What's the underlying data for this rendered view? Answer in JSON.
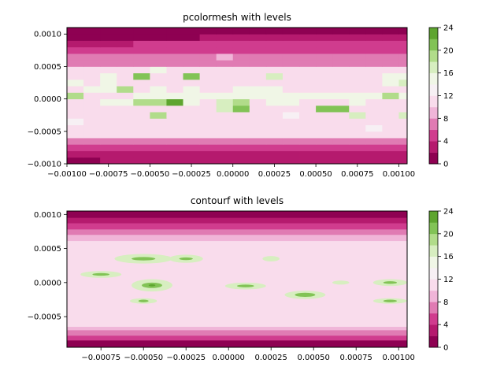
{
  "chart_data": [
    {
      "type": "heatmap",
      "title": "pcolormesh with levels",
      "xlabel": "",
      "ylabel": "",
      "xlim": [
        -0.001,
        0.00105
      ],
      "ylim": [
        -0.001,
        0.0011
      ],
      "xticks": [
        -0.001,
        -0.00075,
        -0.0005,
        -0.00025,
        0.0,
        0.00025,
        0.0005,
        0.00075,
        0.001
      ],
      "xtick_labels": [
        "−0.00100",
        "−0.00075",
        "−0.00050",
        "−0.00025",
        "0.00000",
        "0.00025",
        "0.00050",
        "0.00075",
        "0.00100"
      ],
      "yticks": [
        -0.001,
        -0.0005,
        0.0,
        0.0005,
        0.001
      ],
      "ytick_labels": [
        "−0.0010",
        "−0.0005",
        "0.0000",
        "0.0005",
        "0.0010"
      ],
      "x_edges": [
        -0.001,
        -0.0009,
        -0.0008,
        -0.0007,
        -0.0006,
        -0.0005,
        -0.0004,
        -0.0003,
        -0.0002,
        -0.0001,
        0.0,
        0.0001,
        0.0002,
        0.0003,
        0.0004,
        0.0005,
        0.0006,
        0.0007,
        0.0008,
        0.0009,
        0.001,
        0.00105
      ],
      "y_edges": [
        -0.001,
        -0.0009,
        -0.0008,
        -0.0007,
        -0.0006,
        -0.0005,
        -0.0004,
        -0.0003,
        -0.0002,
        -0.0001,
        0.0,
        0.0001,
        0.0002,
        0.0003,
        0.0004,
        0.0005,
        0.0006,
        0.0007,
        0.0008,
        0.0009,
        0.001,
        0.0011
      ],
      "levels_hint": "cell values bin into colorbar levels",
      "z": [
        [
          1,
          1,
          2,
          2,
          2,
          2,
          2,
          2,
          2,
          2,
          2,
          2,
          2,
          2,
          2,
          2,
          2,
          2,
          2,
          2,
          2
        ],
        [
          2,
          2,
          2,
          2,
          3,
          3,
          3,
          3,
          3,
          3,
          3,
          3,
          3,
          3,
          3,
          3,
          3,
          3,
          3,
          3,
          3
        ],
        [
          4,
          4,
          5,
          5,
          5,
          5,
          5,
          5,
          5,
          5,
          5,
          5,
          5,
          5,
          5,
          5,
          5,
          5,
          5,
          5,
          5
        ],
        [
          7,
          7,
          7,
          7,
          7,
          7,
          7,
          7,
          7,
          7,
          7,
          7,
          7,
          7,
          7,
          7,
          7,
          7,
          7,
          7,
          7
        ],
        [
          10,
          10,
          10,
          10,
          10,
          10,
          10,
          10,
          10,
          10,
          10,
          10,
          10,
          10,
          10,
          10,
          10,
          10,
          10,
          10,
          10
        ],
        [
          10,
          10,
          10,
          10,
          10,
          10,
          10,
          10,
          10,
          10,
          10,
          10,
          10,
          10,
          10,
          10,
          10,
          10,
          13,
          10,
          10
        ],
        [
          13,
          10,
          10,
          10,
          10,
          10,
          10,
          10,
          10,
          10,
          10,
          10,
          10,
          10,
          10,
          10,
          10,
          10,
          10,
          10,
          10
        ],
        [
          10,
          10,
          10,
          10,
          10,
          19,
          10,
          10,
          10,
          10,
          10,
          10,
          10,
          13,
          10,
          10,
          10,
          17,
          10,
          10,
          17
        ],
        [
          10,
          10,
          10,
          10,
          10,
          10,
          10,
          10,
          10,
          17,
          21,
          10,
          10,
          10,
          10,
          21,
          21,
          10,
          10,
          10,
          10
        ],
        [
          10,
          10,
          14,
          14,
          18,
          18,
          23,
          14,
          10,
          17,
          19,
          10,
          14,
          14,
          10,
          10,
          10,
          14,
          10,
          10,
          10
        ],
        [
          18,
          10,
          10,
          10,
          14,
          14,
          14,
          14,
          14,
          14,
          14,
          14,
          14,
          14,
          14,
          14,
          14,
          14,
          14,
          18,
          14
        ],
        [
          10,
          14,
          14,
          19,
          10,
          14,
          10,
          14,
          10,
          10,
          14,
          14,
          14,
          10,
          10,
          10,
          10,
          10,
          10,
          10,
          10
        ],
        [
          14,
          10,
          14,
          10,
          10,
          10,
          10,
          10,
          10,
          10,
          10,
          10,
          10,
          10,
          10,
          10,
          10,
          10,
          10,
          14,
          17
        ],
        [
          10,
          10,
          14,
          10,
          21,
          10,
          10,
          21,
          10,
          10,
          10,
          10,
          17,
          10,
          10,
          10,
          10,
          10,
          10,
          14,
          14
        ],
        [
          10,
          10,
          10,
          10,
          10,
          14,
          10,
          10,
          10,
          10,
          10,
          10,
          10,
          10,
          10,
          10,
          10,
          10,
          10,
          10,
          10
        ],
        [
          7,
          7,
          7,
          7,
          7,
          7,
          7,
          7,
          7,
          7,
          7,
          7,
          7,
          7,
          7,
          7,
          7,
          7,
          7,
          7,
          7
        ],
        [
          7,
          7,
          7,
          7,
          7,
          7,
          7,
          7,
          7,
          9,
          7,
          7,
          7,
          7,
          7,
          7,
          7,
          7,
          7,
          7,
          7
        ],
        [
          5,
          5,
          5,
          5,
          5,
          5,
          5,
          5,
          5,
          5,
          5,
          5,
          5,
          5,
          5,
          5,
          5,
          5,
          5,
          5,
          5
        ],
        [
          3,
          3,
          3,
          3,
          5,
          5,
          5,
          5,
          5,
          5,
          5,
          5,
          5,
          5,
          5,
          5,
          5,
          5,
          5,
          5,
          5
        ],
        [
          1,
          1,
          1,
          1,
          1,
          1,
          1,
          1,
          3,
          3,
          3,
          3,
          3,
          3,
          3,
          3,
          3,
          3,
          3,
          3,
          3
        ],
        [
          1,
          1,
          1,
          1,
          1,
          1,
          1,
          1,
          1,
          1,
          1,
          1,
          1,
          1,
          1,
          1,
          1,
          1,
          1,
          1,
          1
        ]
      ],
      "colorbar": {
        "levels": [
          0,
          2,
          4,
          6,
          8,
          10,
          12,
          14,
          16,
          18,
          20,
          22,
          24
        ],
        "tick_labels": [
          "0",
          "4",
          "8",
          "12",
          "16",
          "20",
          "24"
        ],
        "colors": [
          "#8e0152",
          "#b51a6e",
          "#d03c8e",
          "#e07bb3",
          "#f0b5d8",
          "#f9dcec",
          "#f7f0f4",
          "#f0f6e6",
          "#d7eec0",
          "#b1dc8a",
          "#82c356",
          "#5ea52f",
          "#33781d"
        ]
      }
    },
    {
      "type": "heatmap",
      "title": "contourf with levels",
      "xlabel": "",
      "ylabel": "",
      "xlim": [
        -0.00095,
        0.00105
      ],
      "ylim": [
        -0.00095,
        0.00105
      ],
      "xticks": [
        -0.00075,
        -0.0005,
        -0.00025,
        0.0,
        0.00025,
        0.0005,
        0.00075,
        0.001
      ],
      "xtick_labels": [
        "−0.00075",
        "−0.00050",
        "−0.00025",
        "0.00000",
        "0.00025",
        "0.00050",
        "0.00075",
        "0.00100"
      ],
      "yticks": [
        -0.0005,
        0.0,
        0.0005,
        0.001
      ],
      "ytick_labels": [
        "−0.0005",
        "0.0000",
        "0.0005",
        "0.0010"
      ],
      "bands": [
        {
          "y": [
            0.00095,
            0.00105
          ],
          "level": 0
        },
        {
          "y": [
            0.00087,
            0.00095
          ],
          "level": 1
        },
        {
          "y": [
            0.00078,
            0.00087
          ],
          "level": 2
        },
        {
          "y": [
            0.0007,
            0.00078
          ],
          "level": 3
        },
        {
          "y": [
            0.00061,
            0.0007
          ],
          "level": 4
        },
        {
          "y": [
            -0.00065,
            0.00061
          ],
          "level": 5
        },
        {
          "y": [
            -0.0007,
            -0.00065
          ],
          "level": 4
        },
        {
          "y": [
            -0.00078,
            -0.0007
          ],
          "level": 3
        },
        {
          "y": [
            -0.00085,
            -0.00078
          ],
          "level": 2
        },
        {
          "y": [
            -0.00095,
            -0.00085
          ],
          "level": 0
        }
      ],
      "blobs": [
        {
          "x": -0.0005,
          "y": 0.00035,
          "rx": 0.00017,
          "ry": 7e-05,
          "level": 8
        },
        {
          "x": -0.0005,
          "y": 0.00035,
          "rx": 7e-05,
          "ry": 2.5e-05,
          "level": 10
        },
        {
          "x": -0.00025,
          "y": 0.00035,
          "rx": 0.0001,
          "ry": 6e-05,
          "level": 8
        },
        {
          "x": -0.00025,
          "y": 0.00035,
          "rx": 4e-05,
          "ry": 2e-05,
          "level": 10
        },
        {
          "x": 0.00025,
          "y": 0.00035,
          "rx": 5e-05,
          "ry": 4e-05,
          "level": 8
        },
        {
          "x": -0.00075,
          "y": 0.00012,
          "rx": 0.00012,
          "ry": 5e-05,
          "level": 8
        },
        {
          "x": -0.00075,
          "y": 0.00012,
          "rx": 5e-05,
          "ry": 2e-05,
          "level": 10
        },
        {
          "x": -0.00045,
          "y": -4e-05,
          "rx": 0.00012,
          "ry": 9e-05,
          "level": 8
        },
        {
          "x": -0.00045,
          "y": -4e-05,
          "rx": 6e-05,
          "ry": 4e-05,
          "level": 10
        },
        {
          "x": -0.00045,
          "y": -4e-05,
          "rx": 2e-05,
          "ry": 1.5e-05,
          "level": 11
        },
        {
          "x": 0.0001,
          "y": -5e-05,
          "rx": 0.00012,
          "ry": 5e-05,
          "level": 8
        },
        {
          "x": 0.0001,
          "y": -5e-05,
          "rx": 5e-05,
          "ry": 2e-05,
          "level": 10
        },
        {
          "x": 0.00045,
          "y": -0.00018,
          "rx": 0.00012,
          "ry": 6e-05,
          "level": 8
        },
        {
          "x": 0.00045,
          "y": -0.00018,
          "rx": 6e-05,
          "ry": 3e-05,
          "level": 10
        },
        {
          "x": -0.0005,
          "y": -0.00027,
          "rx": 8e-05,
          "ry": 4e-05,
          "level": 8
        },
        {
          "x": -0.0005,
          "y": -0.00027,
          "rx": 3e-05,
          "ry": 2e-05,
          "level": 10
        },
        {
          "x": 0.00095,
          "y": 0.0,
          "rx": 0.0001,
          "ry": 5e-05,
          "level": 8
        },
        {
          "x": 0.00095,
          "y": 0.0,
          "rx": 4e-05,
          "ry": 2e-05,
          "level": 10
        },
        {
          "x": 0.00095,
          "y": -0.00027,
          "rx": 0.0001,
          "ry": 4e-05,
          "level": 8
        },
        {
          "x": 0.00095,
          "y": -0.00027,
          "rx": 4e-05,
          "ry": 2e-05,
          "level": 10
        },
        {
          "x": 0.00066,
          "y": 0.0,
          "rx": 5e-05,
          "ry": 3e-05,
          "level": 8
        }
      ],
      "colorbar": {
        "levels": [
          0,
          2,
          4,
          6,
          8,
          10,
          12,
          14,
          16,
          18,
          20,
          22,
          24
        ],
        "tick_labels": [
          "0",
          "4",
          "8",
          "12",
          "16",
          "20",
          "24"
        ],
        "colors": [
          "#8e0152",
          "#b51a6e",
          "#d03c8e",
          "#e07bb3",
          "#f0b5d8",
          "#f9dcec",
          "#f7f0f4",
          "#f0f6e6",
          "#d7eec0",
          "#b1dc8a",
          "#82c356",
          "#5ea52f",
          "#33781d"
        ]
      }
    }
  ]
}
